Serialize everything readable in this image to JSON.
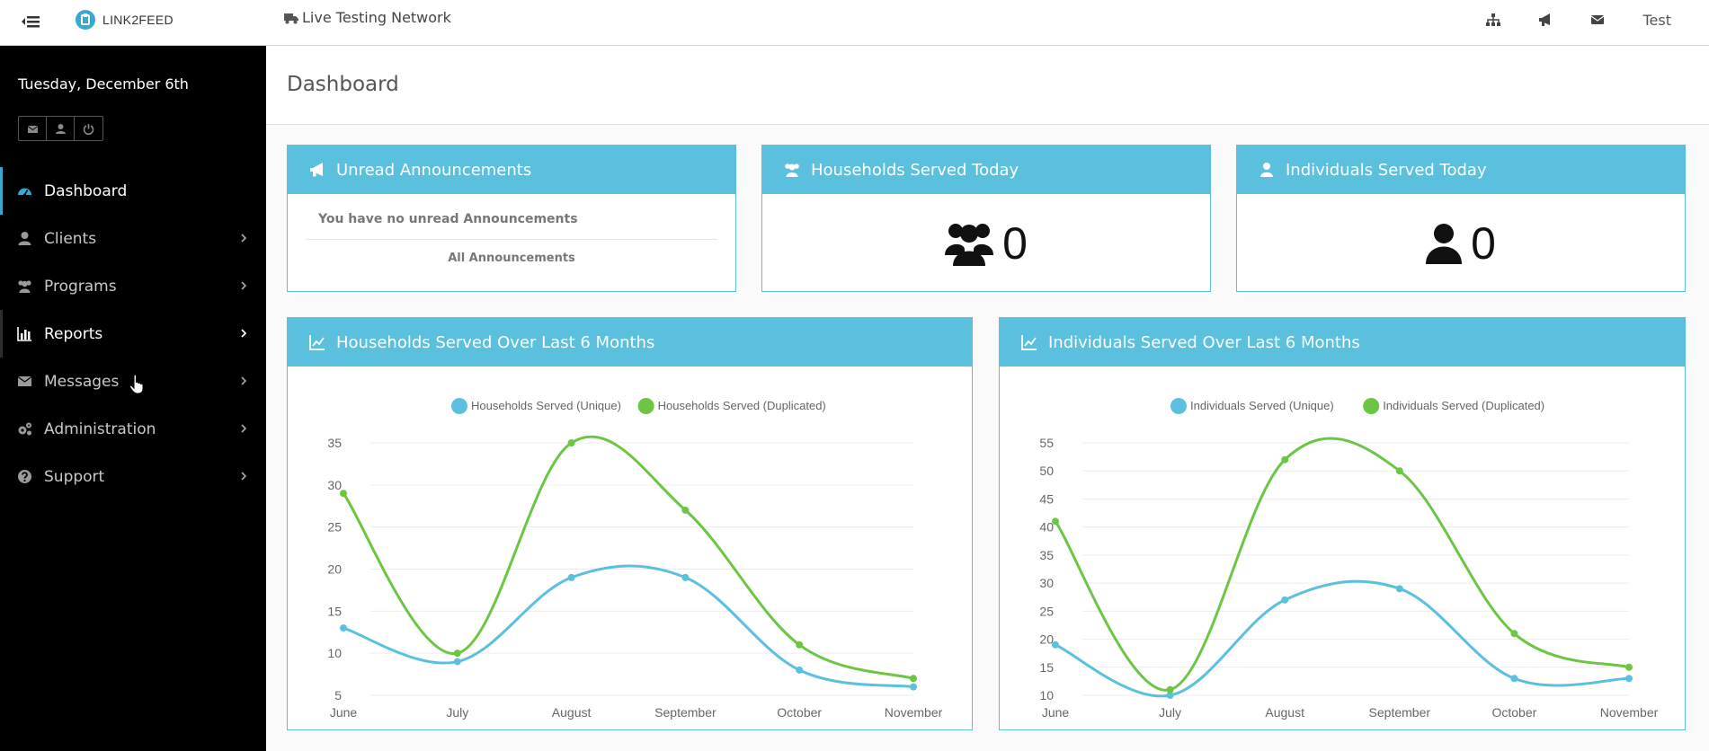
{
  "header": {
    "brand": "LINK2FEED",
    "network": "Live Testing Network",
    "user": "Test"
  },
  "sidebar": {
    "date": "Tuesday, December 6th",
    "items": [
      {
        "label": "Dashboard",
        "icon": "dashboard-icon",
        "active": true
      },
      {
        "label": "Clients",
        "icon": "user-icon"
      },
      {
        "label": "Programs",
        "icon": "users-icon"
      },
      {
        "label": "Reports",
        "icon": "bar-chart-icon",
        "hover": true
      },
      {
        "label": "Messages",
        "icon": "envelope-icon"
      },
      {
        "label": "Administration",
        "icon": "cogs-icon"
      },
      {
        "label": "Support",
        "icon": "question-circle-icon"
      }
    ]
  },
  "page": {
    "title": "Dashboard"
  },
  "cards": {
    "announcements": {
      "title": "Unread Announcements",
      "message": "You have no unread Announcements",
      "link": "All Announcements"
    },
    "households_today": {
      "title": "Households Served Today",
      "value": "0"
    },
    "individuals_today": {
      "title": "Individuals Served Today",
      "value": "0"
    },
    "households_chart": {
      "title": "Households Served Over Last 6 Months"
    },
    "individuals_chart": {
      "title": "Individuals Served Over Last 6 Months"
    }
  },
  "colors": {
    "accent": "#5bc0de",
    "unique": "#5bc0de",
    "duplicated": "#6cc644",
    "sidebar": "#000000"
  },
  "chart_data": [
    {
      "type": "line",
      "title": "",
      "x": [
        "June",
        "July",
        "August",
        "September",
        "October",
        "November"
      ],
      "ylim": [
        5,
        35
      ],
      "yticks": [
        5,
        10,
        15,
        20,
        25,
        30,
        35
      ],
      "legend_position": "top",
      "grid": true,
      "series": [
        {
          "name": "Households Served (Unique)",
          "values": [
            13,
            9,
            19,
            19,
            8,
            6
          ],
          "color": "#5bc0de"
        },
        {
          "name": "Households Served (Duplicated)",
          "values": [
            29,
            10,
            35,
            27,
            11,
            7
          ],
          "color": "#6cc644"
        }
      ]
    },
    {
      "type": "line",
      "title": "",
      "x": [
        "June",
        "July",
        "August",
        "September",
        "October",
        "November"
      ],
      "ylim": [
        10,
        55
      ],
      "yticks": [
        10,
        15,
        20,
        25,
        30,
        35,
        40,
        45,
        50,
        55
      ],
      "legend_position": "top",
      "grid": true,
      "series": [
        {
          "name": "Individuals Served (Unique)",
          "values": [
            19,
            10,
            27,
            29,
            13,
            13
          ],
          "color": "#5bc0de"
        },
        {
          "name": "Individuals Served (Duplicated)",
          "values": [
            41,
            11,
            52,
            50,
            21,
            15
          ],
          "color": "#6cc644"
        }
      ]
    }
  ]
}
